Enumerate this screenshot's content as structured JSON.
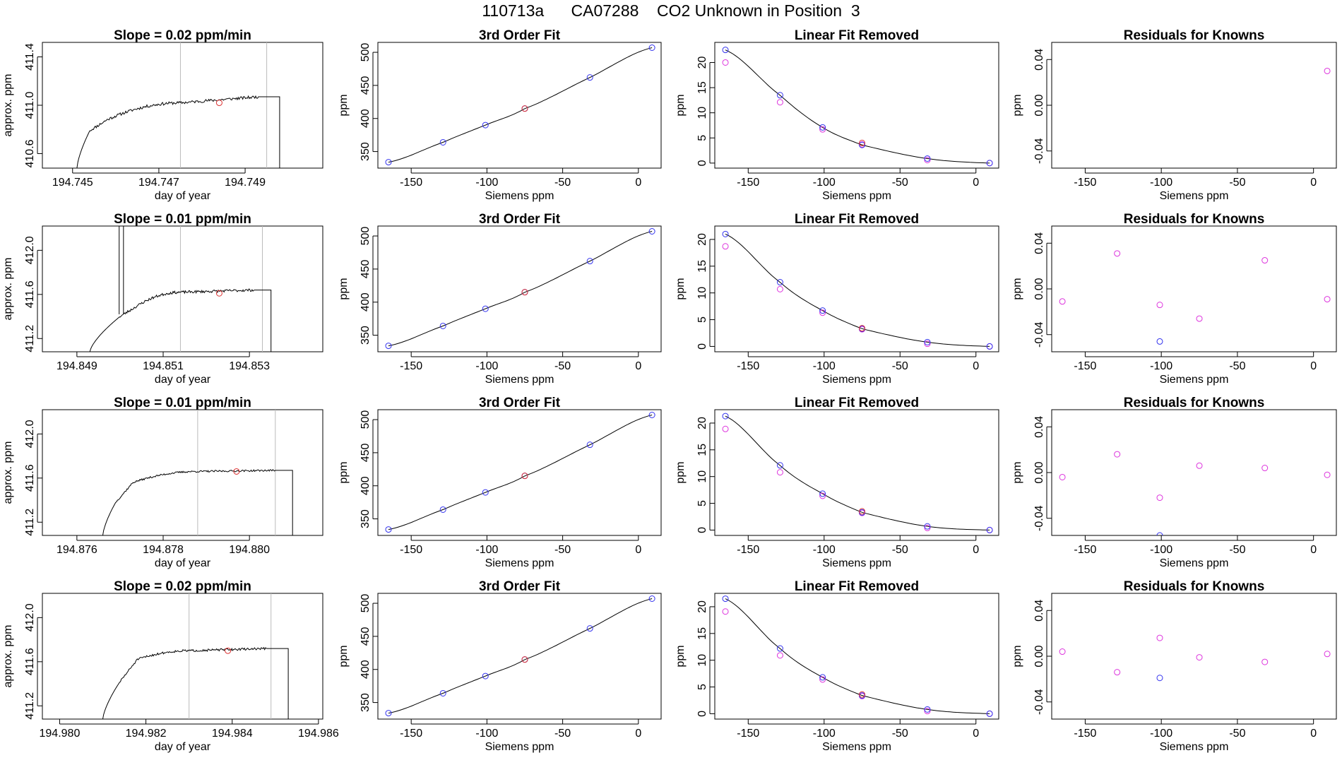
{
  "page": {
    "title": "110713a      CA07288    CO2 Unknown in Position  3"
  },
  "labels": {
    "trace_x": "day of year",
    "trace_y": "approx. ppm",
    "fit_x": "Siemens ppm",
    "fit_y": "ppm",
    "fit_title": "3rd Order Fit",
    "lin_title": "Linear Fit Removed",
    "res_title": "Residuals for Knowns"
  },
  "colors": {
    "known": "#3333ee",
    "residual": "#dd33dd",
    "unknown": "#dd3333",
    "line": "#000000",
    "vline": "#bbbbbb",
    "axis": "#000000"
  },
  "chart_data": [
    {
      "row": 1,
      "trace": {
        "type": "line",
        "title": "Slope =  0.02  ppm/min",
        "xlim": [
          194.7443,
          194.7508
        ],
        "ylim": [
          410.48,
          411.52
        ],
        "xticks": [
          194.745,
          194.747,
          194.749
        ],
        "xtick_labels": [
          "194.745",
          "194.747",
          "194.749"
        ],
        "yticks": [
          410.6,
          411.0,
          411.4
        ],
        "ytick_labels": [
          "410.6",
          "411.0",
          "411.4"
        ],
        "vlines": [
          194.7475,
          194.7495
        ],
        "rise_start": [
          194.7451,
          410.48
        ],
        "rise_to": [
          194.7454,
          410.79
        ],
        "plateau": [
          194.7458,
          410.88
        ],
        "mid": [
          194.7475,
          411.02
        ],
        "end": [
          194.7493,
          411.07
        ],
        "drop_at": [
          194.7498,
          410.48
        ],
        "marker": [
          194.7484,
          411.02
        ],
        "noise": 0.012,
        "seed": 11
      },
      "fit": {
        "type": "line",
        "title": "3rd Order Fit",
        "xlim": [
          -172,
          15
        ],
        "ylim": [
          325,
          515
        ],
        "xticks": [
          -150,
          -100,
          -50,
          0
        ],
        "xtick_labels": [
          "-150",
          "-100",
          "-50",
          "0"
        ],
        "yticks": [
          350,
          400,
          450,
          500
        ],
        "ytick_labels": [
          "350",
          "400",
          "450",
          "500"
        ],
        "knowns_x": [
          -165,
          -129,
          -101,
          -75,
          -32,
          9
        ],
        "knowns_y": [
          334,
          364,
          390,
          415,
          462,
          507
        ],
        "unknown": [
          -75,
          415
        ]
      },
      "linear": {
        "type": "line",
        "title": "Linear Fit Removed",
        "xlim": [
          -172,
          15
        ],
        "ylim": [
          -1,
          24
        ],
        "xticks": [
          -150,
          -100,
          -50,
          0
        ],
        "xtick_labels": [
          "-150",
          "-100",
          "-50",
          "0"
        ],
        "yticks": [
          0,
          5,
          10,
          15,
          20
        ],
        "ytick_labels": [
          "0",
          "5",
          "10",
          "15",
          "20"
        ],
        "knowns_x": [
          -165,
          -129,
          -101,
          -75,
          -32,
          9
        ],
        "curve_y": [
          22.5,
          13.5,
          7.1,
          3.6,
          0.9,
          0
        ],
        "alt_y": [
          20.0,
          12.1,
          6.7,
          3.7,
          0.6,
          0
        ],
        "unknown": [
          -75,
          4.0
        ]
      },
      "residuals": {
        "type": "scatter",
        "title": "Residuals for Knowns",
        "xlim": [
          -172,
          15
        ],
        "ylim": [
          -0.055,
          0.055
        ],
        "xticks": [
          -150,
          -100,
          -50,
          0
        ],
        "xtick_labels": [
          "-150",
          "-100",
          "-50",
          "0"
        ],
        "yticks": [
          -0.04,
          0.0,
          0.04
        ],
        "ytick_labels": [
          "-0.04",
          "0.00",
          "0.04"
        ],
        "magenta": [
          [
            9,
            0.03
          ]
        ],
        "blue": []
      }
    },
    {
      "row": 2,
      "trace": {
        "type": "line",
        "title": "Slope =  0.01  ppm/min",
        "xlim": [
          194.8482,
          194.8547
        ],
        "ylim": [
          411.08,
          412.22
        ],
        "xticks": [
          194.849,
          194.851,
          194.853
        ],
        "xtick_labels": [
          "194.849",
          "194.851",
          "194.853"
        ],
        "yticks": [
          411.2,
          411.6,
          412.0
        ],
        "ytick_labels": [
          "411.2",
          "411.6",
          "412.0"
        ],
        "vlines": [
          194.8514,
          194.8533
        ],
        "rise_start": [
          194.8493,
          411.08
        ],
        "rise_to": [
          194.85,
          411.4
        ],
        "plateau": [
          194.8505,
          411.52
        ],
        "mid": [
          194.8514,
          411.62
        ],
        "end": [
          194.8531,
          411.64
        ],
        "drop_at": [
          194.8535,
          411.08
        ],
        "marker": [
          194.8523,
          411.61
        ],
        "spike": [
          194.84998,
          194.85008
        ],
        "noise": 0.012,
        "seed": 23
      },
      "fit": {
        "type": "line",
        "title": "3rd Order Fit",
        "xlim": [
          -172,
          15
        ],
        "ylim": [
          325,
          515
        ],
        "xticks": [
          -150,
          -100,
          -50,
          0
        ],
        "xtick_labels": [
          "-150",
          "-100",
          "-50",
          "0"
        ],
        "yticks": [
          350,
          400,
          450,
          500
        ],
        "ytick_labels": [
          "350",
          "400",
          "450",
          "500"
        ],
        "knowns_x": [
          -165,
          -129,
          -101,
          -75,
          -32,
          9
        ],
        "knowns_y": [
          334,
          364,
          390,
          415,
          462,
          507
        ],
        "unknown": [
          -75,
          415
        ]
      },
      "linear": {
        "type": "line",
        "title": "Linear Fit Removed",
        "xlim": [
          -172,
          15
        ],
        "ylim": [
          -1,
          22.5
        ],
        "xticks": [
          -150,
          -100,
          -50,
          0
        ],
        "xtick_labels": [
          "-150",
          "-100",
          "-50",
          "0"
        ],
        "yticks": [
          0,
          5,
          10,
          15,
          20
        ],
        "ytick_labels": [
          "0",
          "5",
          "10",
          "15",
          "20"
        ],
        "knowns_x": [
          -165,
          -129,
          -101,
          -75,
          -32,
          9
        ],
        "curve_y": [
          21.0,
          12.0,
          6.7,
          3.3,
          0.8,
          0
        ],
        "alt_y": [
          18.7,
          10.7,
          6.3,
          3.2,
          0.5,
          0
        ],
        "unknown": [
          -75,
          3.4
        ]
      },
      "residuals": {
        "type": "scatter",
        "title": "Residuals for Knowns",
        "xlim": [
          -172,
          15
        ],
        "ylim": [
          -0.055,
          0.055
        ],
        "xticks": [
          -150,
          -100,
          -50,
          0
        ],
        "xtick_labels": [
          "-150",
          "-100",
          "-50",
          "0"
        ],
        "yticks": [
          -0.04,
          0.0,
          0.04
        ],
        "ytick_labels": [
          "-0.04",
          "0.00",
          "0.04"
        ],
        "magenta": [
          [
            -165,
            -0.011
          ],
          [
            -129,
            0.031
          ],
          [
            -101,
            -0.014
          ],
          [
            -75,
            -0.026
          ],
          [
            -32,
            0.025
          ],
          [
            9,
            -0.009
          ]
        ],
        "blue": [
          [
            -101,
            -0.046
          ]
        ]
      }
    },
    {
      "row": 3,
      "trace": {
        "type": "line",
        "title": "Slope =  0.01  ppm/min",
        "xlim": [
          194.8752,
          194.8817
        ],
        "ylim": [
          411.08,
          412.22
        ],
        "xticks": [
          194.876,
          194.878,
          194.88
        ],
        "xtick_labels": [
          "194.876",
          "194.878",
          "194.880"
        ],
        "yticks": [
          411.2,
          411.6,
          412.0
        ],
        "ytick_labels": [
          "411.2",
          "411.6",
          "412.0"
        ],
        "vlines": [
          194.8788,
          194.8806
        ],
        "rise_start": [
          194.8766,
          411.08
        ],
        "rise_to": [
          194.8769,
          411.38
        ],
        "plateau": [
          194.8773,
          411.56
        ],
        "mid": [
          194.8788,
          411.66
        ],
        "end": [
          194.8806,
          411.67
        ],
        "drop_at": [
          194.881,
          411.08
        ],
        "marker": [
          194.8797,
          411.66
        ],
        "noise": 0.008,
        "seed": 37
      },
      "fit": {
        "type": "line",
        "title": "3rd Order Fit",
        "xlim": [
          -172,
          15
        ],
        "ylim": [
          325,
          515
        ],
        "xticks": [
          -150,
          -100,
          -50,
          0
        ],
        "xtick_labels": [
          "-150",
          "-100",
          "-50",
          "0"
        ],
        "yticks": [
          350,
          400,
          450,
          500
        ],
        "ytick_labels": [
          "350",
          "400",
          "450",
          "500"
        ],
        "knowns_x": [
          -165,
          -129,
          -101,
          -75,
          -32,
          9
        ],
        "knowns_y": [
          334,
          364,
          390,
          415,
          462,
          507
        ],
        "unknown": [
          -75,
          415
        ]
      },
      "linear": {
        "type": "line",
        "title": "Linear Fit Removed",
        "xlim": [
          -172,
          15
        ],
        "ylim": [
          -1,
          22.5
        ],
        "xticks": [
          -150,
          -100,
          -50,
          0
        ],
        "xtick_labels": [
          "-150",
          "-100",
          "-50",
          "0"
        ],
        "yticks": [
          0,
          5,
          10,
          15,
          20
        ],
        "ytick_labels": [
          "0",
          "5",
          "10",
          "15",
          "20"
        ],
        "knowns_x": [
          -165,
          -129,
          -101,
          -75,
          -32,
          9
        ],
        "curve_y": [
          21.3,
          12.1,
          6.8,
          3.3,
          0.7,
          0
        ],
        "alt_y": [
          18.9,
          10.8,
          6.4,
          3.2,
          0.4,
          0
        ],
        "unknown": [
          -75,
          3.5
        ]
      },
      "residuals": {
        "type": "scatter",
        "title": "Residuals for Knowns",
        "xlim": [
          -172,
          15
        ],
        "ylim": [
          -0.055,
          0.055
        ],
        "xticks": [
          -150,
          -100,
          -50,
          0
        ],
        "xtick_labels": [
          "-150",
          "-100",
          "-50",
          "0"
        ],
        "yticks": [
          -0.04,
          0.0,
          0.04
        ],
        "ytick_labels": [
          "-0.04",
          "0.00",
          "0.04"
        ],
        "magenta": [
          [
            -165,
            -0.004
          ],
          [
            -129,
            0.016
          ],
          [
            -101,
            -0.022
          ],
          [
            -75,
            0.006
          ],
          [
            -32,
            0.004
          ],
          [
            9,
            -0.002
          ]
        ],
        "blue": [
          [
            -101,
            -0.055
          ]
        ]
      }
    },
    {
      "row": 4,
      "trace": {
        "type": "line",
        "title": "Slope =  0.02  ppm/min",
        "xlim": [
          194.9796,
          194.9861
        ],
        "ylim": [
          411.08,
          412.22
        ],
        "xticks": [
          194.98,
          194.982,
          194.984,
          194.986
        ],
        "xtick_labels": [
          "194.980",
          "194.982",
          "194.984",
          "194.986"
        ],
        "yticks": [
          411.2,
          411.6,
          412.0
        ],
        "ytick_labels": [
          "411.2",
          "411.6",
          "412.0"
        ],
        "vlines": [
          194.983,
          194.9849
        ],
        "rise_start": [
          194.981,
          411.08
        ],
        "rise_to": [
          194.9814,
          411.42
        ],
        "plateau": [
          194.9818,
          411.62
        ],
        "mid": [
          194.983,
          411.7
        ],
        "end": [
          194.9848,
          411.72
        ],
        "drop_at": [
          194.9853,
          411.08
        ],
        "marker": [
          194.9839,
          411.7
        ],
        "noise": 0.01,
        "seed": 51
      },
      "fit": {
        "type": "line",
        "title": "3rd Order Fit",
        "xlim": [
          -172,
          15
        ],
        "ylim": [
          325,
          515
        ],
        "xticks": [
          -150,
          -100,
          -50,
          0
        ],
        "xtick_labels": [
          "-150",
          "-100",
          "-50",
          "0"
        ],
        "yticks": [
          350,
          400,
          450,
          500
        ],
        "ytick_labels": [
          "350",
          "400",
          "450",
          "500"
        ],
        "knowns_x": [
          -165,
          -129,
          -101,
          -75,
          -32,
          9
        ],
        "knowns_y": [
          334,
          364,
          390,
          415,
          462,
          507
        ],
        "unknown": [
          -75,
          415
        ]
      },
      "linear": {
        "type": "line",
        "title": "Linear Fit Removed",
        "xlim": [
          -172,
          15
        ],
        "ylim": [
          -1,
          22.5
        ],
        "xticks": [
          -150,
          -100,
          -50,
          0
        ],
        "xtick_labels": [
          "-150",
          "-100",
          "-50",
          "0"
        ],
        "yticks": [
          0,
          5,
          10,
          15,
          20
        ],
        "ytick_labels": [
          "0",
          "5",
          "10",
          "15",
          "20"
        ],
        "knowns_x": [
          -165,
          -129,
          -101,
          -75,
          -32,
          9
        ],
        "curve_y": [
          21.5,
          12.2,
          6.8,
          3.4,
          0.8,
          0
        ],
        "alt_y": [
          19.1,
          10.9,
          6.4,
          3.3,
          0.5,
          0
        ],
        "unknown": [
          -75,
          3.6
        ]
      },
      "residuals": {
        "type": "scatter",
        "title": "Residuals for Knowns",
        "xlim": [
          -172,
          15
        ],
        "ylim": [
          -0.055,
          0.055
        ],
        "xticks": [
          -150,
          -100,
          -50,
          0
        ],
        "xtick_labels": [
          "-150",
          "-100",
          "-50",
          "0"
        ],
        "yticks": [
          -0.04,
          0.0,
          0.04
        ],
        "ytick_labels": [
          "-0.04",
          "0.00",
          "0.04"
        ],
        "magenta": [
          [
            -165,
            0.004
          ],
          [
            -129,
            -0.014
          ],
          [
            -101,
            0.016
          ],
          [
            -75,
            -0.001
          ],
          [
            -32,
            -0.005
          ],
          [
            9,
            0.002
          ]
        ],
        "blue": [
          [
            -101,
            -0.019
          ]
        ]
      }
    }
  ]
}
